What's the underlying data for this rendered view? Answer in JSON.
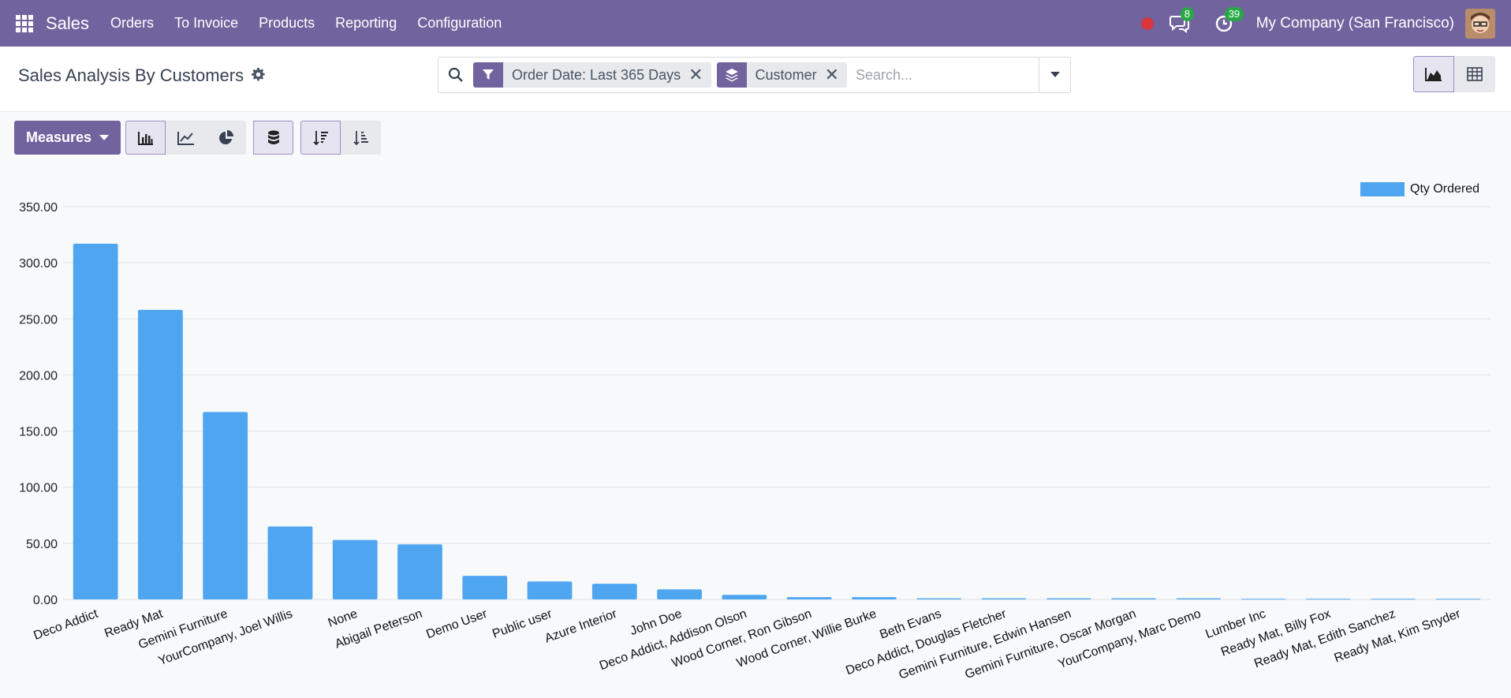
{
  "nav": {
    "app_name": "Sales",
    "menu": [
      "Orders",
      "To Invoice",
      "Products",
      "Reporting",
      "Configuration"
    ],
    "messages_count": "8",
    "activities_count": "39",
    "company": "My Company (San Francisco)"
  },
  "control_panel": {
    "title": "Sales Analysis By Customers",
    "facets": [
      {
        "label": "Order Date: Last 365 Days",
        "icon": "filter-icon"
      },
      {
        "label": "Customer",
        "icon": "layers-icon"
      }
    ],
    "search_placeholder": "Search..."
  },
  "toolbar": {
    "measures_label": "Measures"
  },
  "colors": {
    "brand": "#71639e",
    "bar": "#4fa6f0"
  },
  "chart_data": {
    "type": "bar",
    "ylim": [
      0,
      350
    ],
    "yticks": [
      "0.00",
      "50.00",
      "100.00",
      "150.00",
      "200.00",
      "250.00",
      "300.00",
      "350.00"
    ],
    "grid": true,
    "legend_position": "top-right",
    "series": [
      {
        "name": "Qty Ordered",
        "values": [
          317,
          258,
          167,
          65,
          53,
          49,
          21,
          16,
          14,
          9,
          4,
          2,
          2,
          1,
          1,
          1,
          1,
          1,
          0.5,
          0.5,
          0.5,
          0.5
        ]
      }
    ],
    "categories": [
      "Deco Addict",
      "Ready Mat",
      "Gemini Furniture",
      "YourCompany, Joel Willis",
      "None",
      "Abigail Peterson",
      "Demo User",
      "Public user",
      "Azure Interior",
      "John Doe",
      "Deco Addict, Addison Olson",
      "Wood Corner, Ron Gibson",
      "Wood Corner, Willie Burke",
      "Beth Evans",
      "Deco Addict, Douglas Fletcher",
      "Gemini Furniture, Edwin Hansen",
      "Gemini Furniture, Oscar Morgan",
      "YourCompany, Marc Demo",
      "Lumber Inc",
      "Ready Mat, Billy Fox",
      "Ready Mat, Edith Sanchez",
      "Ready Mat, Kim Snyder"
    ]
  }
}
